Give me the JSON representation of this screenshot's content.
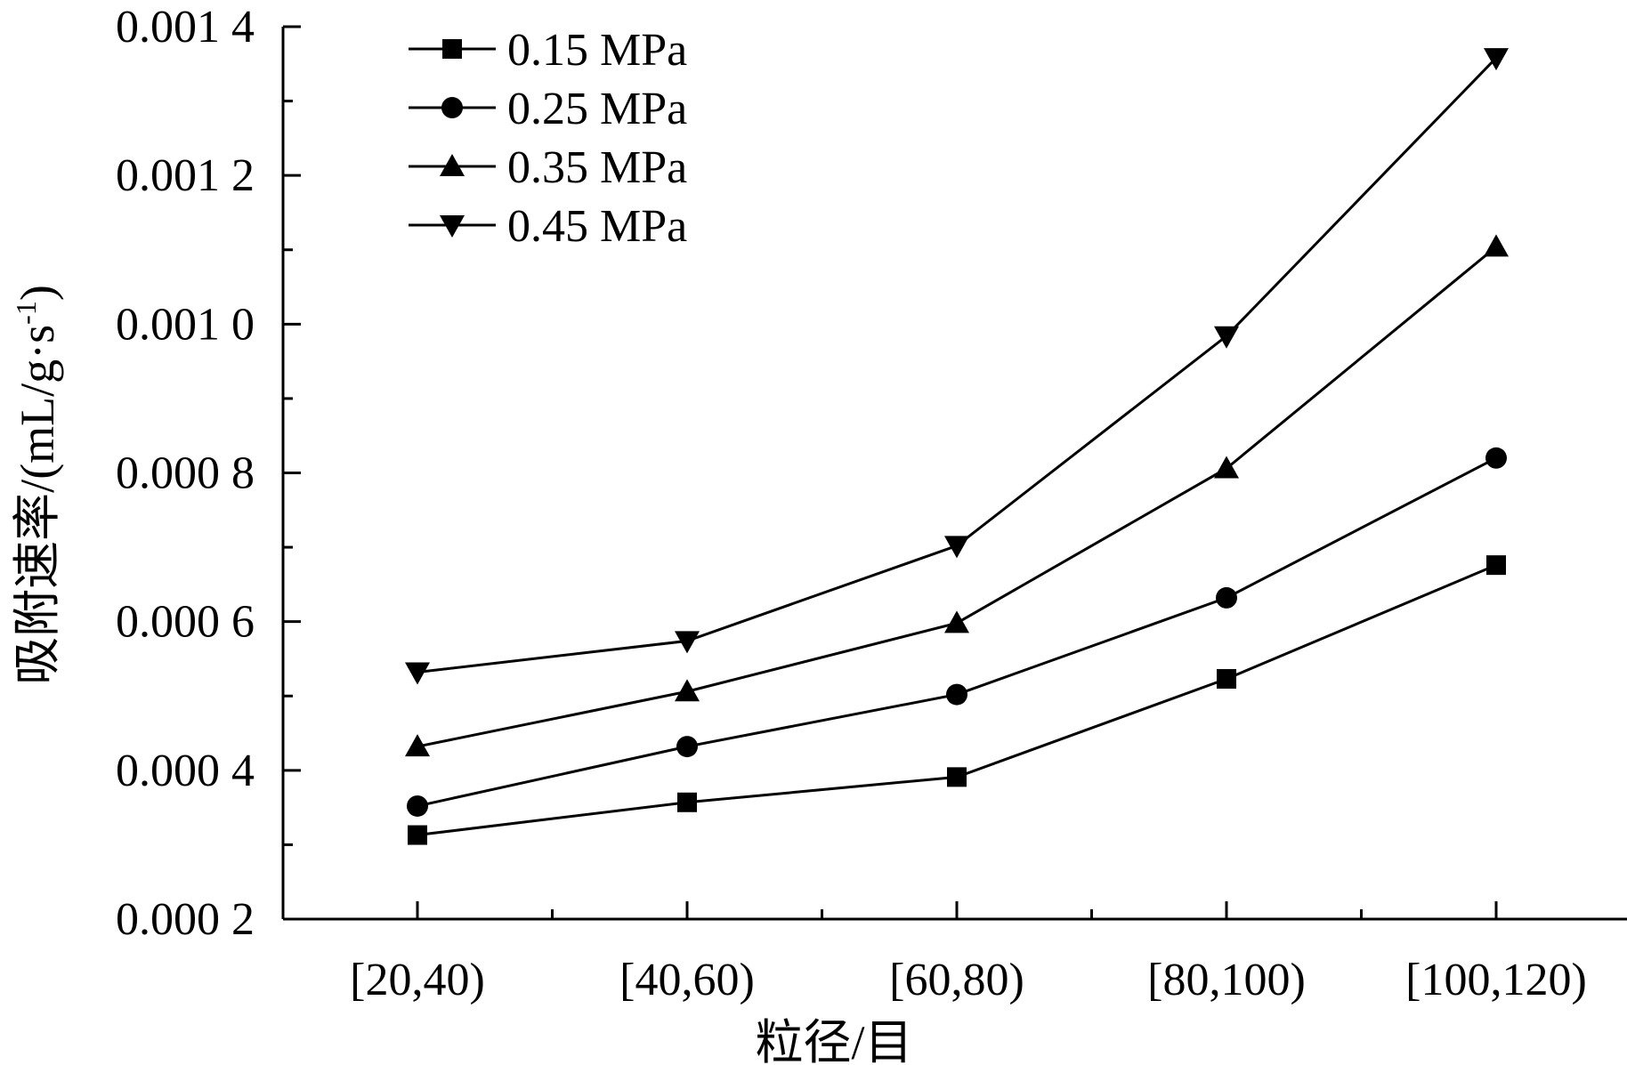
{
  "chart_data": {
    "type": "line",
    "title": "",
    "xlabel": "粒径/目",
    "ylabel_main": "吸附速率/(mL/g·s",
    "ylabel_sup": "-1",
    "ylabel_close": ")",
    "categories": [
      "[20,40)",
      "[40,60)",
      "[60,80)",
      "[80,100)",
      "[100,120)"
    ],
    "ylim": [
      0.0002,
      0.0014
    ],
    "yticks": [
      0.0002,
      0.0004,
      0.0006,
      0.0008,
      0.001,
      0.0012,
      0.0014
    ],
    "ytick_labels": [
      "0.000 2",
      "0.000 4",
      "0.000 6",
      "0.000 8",
      "0.001 0",
      "0.001 2",
      "0.001 4"
    ],
    "grid": false,
    "legend_position": "top-left",
    "series": [
      {
        "name": "0.15 MPa",
        "marker": "square",
        "values": [
          0.000313,
          0.000357,
          0.000391,
          0.000523,
          0.000676
        ]
      },
      {
        "name": "0.25 MPa",
        "marker": "circle",
        "values": [
          0.000352,
          0.000432,
          0.000502,
          0.000632,
          0.00082
        ]
      },
      {
        "name": "0.35 MPa",
        "marker": "triangle-up",
        "values": [
          0.000432,
          0.000506,
          0.000598,
          0.000806,
          0.001104
        ]
      },
      {
        "name": "0.45 MPa",
        "marker": "triangle-down",
        "values": [
          0.000532,
          0.000574,
          0.000702,
          0.000984,
          0.001358
        ]
      }
    ]
  }
}
